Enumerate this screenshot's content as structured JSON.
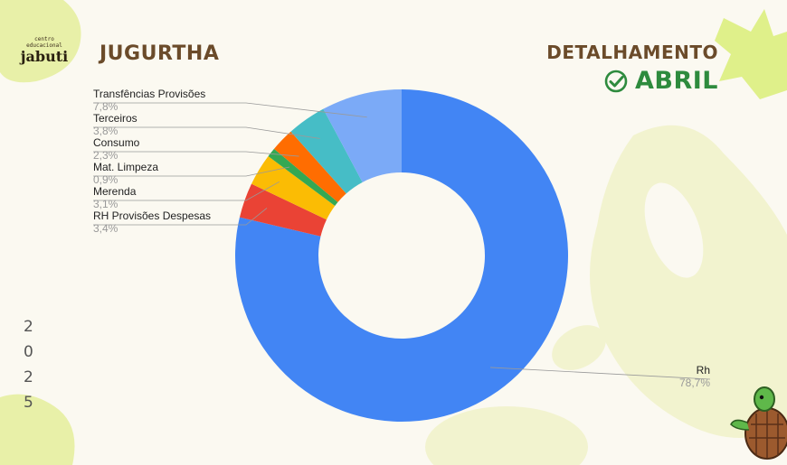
{
  "header": {
    "logo_small": "centro educacional",
    "logo_big": "jabuti",
    "school": "JUGURTHA",
    "detail": "DETALHAMENTO",
    "month": "ABRIL",
    "year_digits": [
      "2",
      "0",
      "2",
      "5"
    ]
  },
  "colors": {
    "brown": "#6b4b2a",
    "green": "#2e8b3e",
    "blob": "#e8f0a8"
  },
  "chart_data": {
    "type": "pie",
    "donut": true,
    "slices": [
      {
        "label": "Rh",
        "value": 78.7,
        "display": "78,7%",
        "color": "#4285f4"
      },
      {
        "label": "RH Provisões Despesas",
        "value": 3.4,
        "display": "3,4%",
        "color": "#ea4335"
      },
      {
        "label": "Merenda",
        "value": 3.1,
        "display": "3,1%",
        "color": "#fbbc04"
      },
      {
        "label": "Mat. Limpeza",
        "value": 0.9,
        "display": "0,9%",
        "color": "#34a853"
      },
      {
        "label": "Consumo",
        "value": 2.3,
        "display": "2,3%",
        "color": "#ff6d01"
      },
      {
        "label": "Terceiros",
        "value": 3.8,
        "display": "3,8%",
        "color": "#46bdc6"
      },
      {
        "label": "Transfências Provisões",
        "value": 7.8,
        "display": "7,8%",
        "color": "#7baaf7"
      }
    ],
    "legend": "callout labels"
  }
}
